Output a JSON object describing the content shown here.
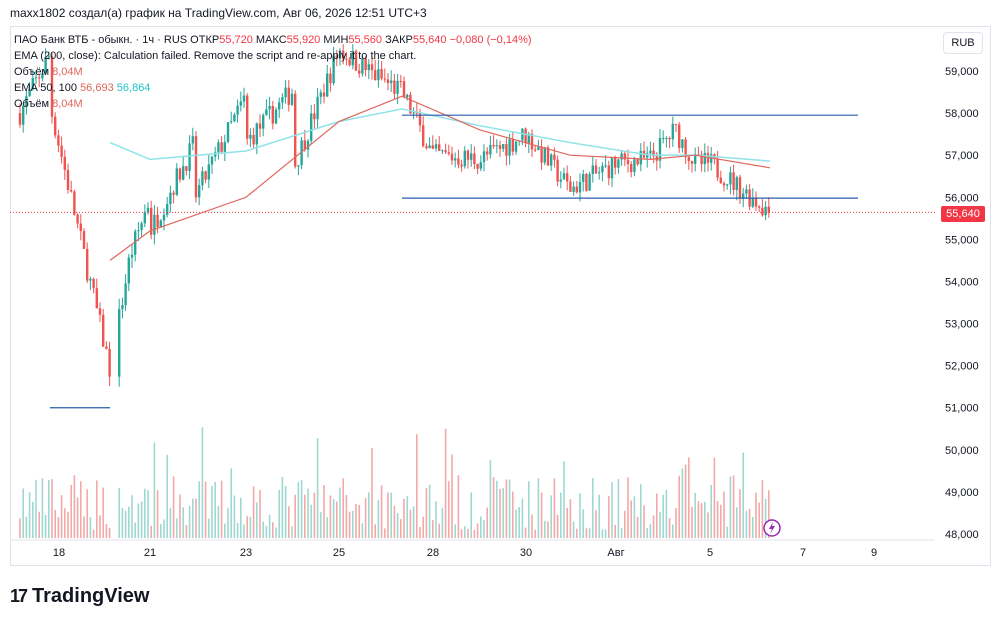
{
  "header": {
    "text": "maxx1802 создал(а) график на TradingView.com, Авг 06, 2026 12:51 UTC+3"
  },
  "legend": {
    "symbol_line": "ПАО Банк ВТБ - обыкн. · 1ч · RUS",
    "open_label": "ОТКР",
    "open_value": "55,720",
    "high_label": "МАКС",
    "high_value": "55,920",
    "low_label": "МИН",
    "low_value": "55,560",
    "close_label": "ЗАКР",
    "close_value": "55,640",
    "change": "−0,080 (−0,14%)",
    "ema200_line": "EMA (200, close): Calculation failed. Remove the script and re-apply it to the chart.",
    "volume1_label": "Объём",
    "volume1_value": "8,04M",
    "ema_label": "EMA 50, 100",
    "ema50_value": "56,693",
    "ema100_value": "56,864",
    "volume2_label": "Объём",
    "volume2_value": "8,04M"
  },
  "currency": "RUB",
  "last_price_tag": "55,640",
  "logo": {
    "mark": "17",
    "text": "TradingView"
  },
  "colors": {
    "up": "#26a69a",
    "down": "#ef5350",
    "ema50": "#e0665b",
    "ema100": "#8fe3e8",
    "hline": "#2a5caa",
    "last": "#f23645"
  },
  "chart_data": {
    "type": "candlestick",
    "timeframe": "1h",
    "y_ticks": [
      "48,000",
      "49,000",
      "50,000",
      "51,000",
      "52,000",
      "53,000",
      "54,000",
      "55,000",
      "56,000",
      "57,000",
      "58,000",
      "59,000"
    ],
    "ylim": [
      47.9,
      59.3
    ],
    "x_ticks": [
      "18",
      "21",
      "23",
      "25",
      "28",
      "30",
      "Авг",
      "5",
      "7",
      "9"
    ],
    "horizontal_lines": [
      {
        "y": 57.95,
        "x_from": "27",
        "x_to": "6 Авг"
      },
      {
        "y": 55.98,
        "x_from": "27",
        "x_to": "6 Авг"
      },
      {
        "y": 51.0,
        "x_from": "17",
        "x_to": "19"
      }
    ],
    "last_price": 55.64,
    "close_path": [
      {
        "x": "16",
        "y": 58.0
      },
      {
        "x": "17",
        "y": 59.4
      },
      {
        "x": "17",
        "y": 58.2
      },
      {
        "x": "19",
        "y": 51.9
      },
      {
        "x": "20",
        "y": 54.6
      },
      {
        "x": "21",
        "y": 56.0
      },
      {
        "x": "21",
        "y": 55.2
      },
      {
        "x": "22",
        "y": 57.3
      },
      {
        "x": "22",
        "y": 56.0
      },
      {
        "x": "23",
        "y": 58.4
      },
      {
        "x": "23",
        "y": 57.3
      },
      {
        "x": "24",
        "y": 58.6
      },
      {
        "x": "24",
        "y": 56.8
      },
      {
        "x": "25",
        "y": 59.5
      },
      {
        "x": "26",
        "y": 58.9
      },
      {
        "x": "27",
        "y": 58.5
      },
      {
        "x": "28",
        "y": 57.0
      },
      {
        "x": "29",
        "y": 56.9
      },
      {
        "x": "30",
        "y": 57.5
      },
      {
        "x": "31",
        "y": 56.2
      },
      {
        "x": "Авг",
        "y": 56.8
      },
      {
        "x": "2",
        "y": 56.9
      },
      {
        "x": "3",
        "y": 57.6
      },
      {
        "x": "4",
        "y": 56.8
      },
      {
        "x": "5",
        "y": 56.8
      },
      {
        "x": "6",
        "y": 55.64
      }
    ],
    "ema50_path": [
      {
        "x": "19",
        "y": 54.5
      },
      {
        "x": "21",
        "y": 55.2
      },
      {
        "x": "23",
        "y": 56.0
      },
      {
        "x": "25",
        "y": 57.8
      },
      {
        "x": "27",
        "y": 58.4
      },
      {
        "x": "29",
        "y": 57.6
      },
      {
        "x": "31",
        "y": 57.0
      },
      {
        "x": "2",
        "y": 56.9
      },
      {
        "x": "4",
        "y": 57.0
      },
      {
        "x": "6",
        "y": 56.7
      }
    ],
    "ema100_path": [
      {
        "x": "19",
        "y": 57.3
      },
      {
        "x": "21",
        "y": 56.9
      },
      {
        "x": "23",
        "y": 57.1
      },
      {
        "x": "25",
        "y": 57.8
      },
      {
        "x": "27",
        "y": 58.1
      },
      {
        "x": "29",
        "y": 57.7
      },
      {
        "x": "31",
        "y": 57.3
      },
      {
        "x": "2",
        "y": 57.0
      },
      {
        "x": "4",
        "y": 57.0
      },
      {
        "x": "6",
        "y": 56.86
      }
    ]
  }
}
